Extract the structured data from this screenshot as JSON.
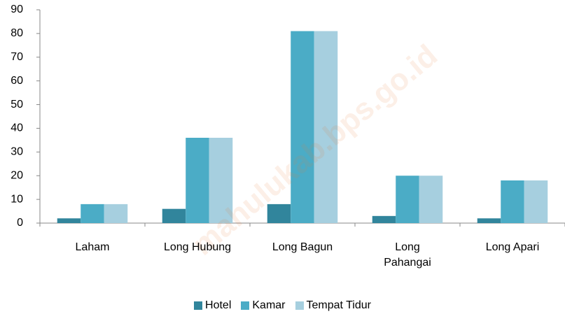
{
  "chart_data": {
    "type": "bar",
    "categories": [
      "Laham",
      "Long Hubung",
      "Long Bagun",
      "Long Pahangai",
      "Long Apari"
    ],
    "series": [
      {
        "name": "Hotel",
        "color": "#31859c",
        "values": [
          2,
          6,
          8,
          3,
          2
        ]
      },
      {
        "name": "Kamar",
        "color": "#4bacc6",
        "values": [
          8,
          36,
          81,
          20,
          18
        ]
      },
      {
        "name": "Tempat Tidur",
        "color": "#a6cfdf",
        "values": [
          8,
          36,
          81,
          20,
          18
        ]
      }
    ],
    "ylim": [
      0,
      90
    ],
    "yticks": [
      0,
      10,
      20,
      30,
      40,
      50,
      60,
      70,
      80,
      90
    ],
    "legend": "bottom",
    "grid": false,
    "watermark": "mahulukab.bps.go.id"
  }
}
